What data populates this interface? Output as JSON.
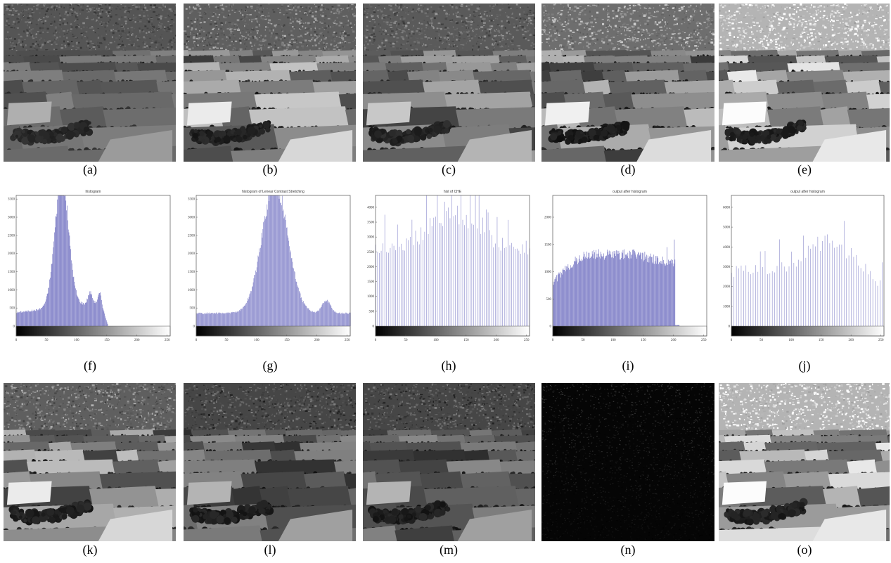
{
  "figure": {
    "top_row": [
      {
        "caption": "(a)",
        "tone": "original"
      },
      {
        "caption": "(b)",
        "tone": "stretched"
      },
      {
        "caption": "(c)",
        "tone": "clahe"
      },
      {
        "caption": "(d)",
        "tone": "equalized"
      },
      {
        "caption": "(e)",
        "tone": "bright"
      }
    ],
    "hist_row_captions": [
      "(f)",
      "(g)",
      "(h)",
      "(i)",
      "(j)"
    ],
    "bottom_row": [
      {
        "caption": "(k)",
        "tone": "stretched"
      },
      {
        "caption": "(l)",
        "tone": "dark"
      },
      {
        "caption": "(m)",
        "tone": "dark"
      },
      {
        "caption": "(n)",
        "tone": "noise"
      },
      {
        "caption": "(o)",
        "tone": "bright"
      }
    ]
  },
  "chart_data": [
    {
      "type": "bar",
      "title": "histogram",
      "ylim": [
        0,
        3600
      ],
      "xlim": [
        0,
        255
      ],
      "yticks": [
        0,
        500,
        1000,
        1500,
        2000,
        2500,
        3000,
        3500
      ],
      "xticks": [
        0,
        50,
        100,
        150,
        200,
        250
      ],
      "bar_color": "#7070c0",
      "profile": "peak",
      "peak_bin": 75
    },
    {
      "type": "bar",
      "title": "histogram of Lenear Contrast Stretching",
      "ylim": [
        0,
        3600
      ],
      "xlim": [
        0,
        255
      ],
      "yticks": [
        0,
        500,
        1000,
        1500,
        2000,
        2500,
        3000,
        3500
      ],
      "xticks": [
        0,
        50,
        100,
        150,
        200,
        250
      ],
      "bar_color": "#8080c8",
      "profile": "wide_peak",
      "peak_bin": 130
    },
    {
      "type": "bar",
      "title": "hist of CHE",
      "ylim": [
        0,
        4400
      ],
      "xlim": [
        0,
        255
      ],
      "yticks": [
        0,
        500,
        1000,
        1500,
        2000,
        2500,
        3000,
        3500,
        4000
      ],
      "xticks": [
        0,
        50,
        100,
        150,
        200,
        250
      ],
      "bar_color": "#9090d0",
      "profile": "spiky",
      "peak_bin": 128
    },
    {
      "type": "bar",
      "title": "output after histogram",
      "ylim": [
        0,
        2400
      ],
      "xlim": [
        0,
        255
      ],
      "yticks": [
        0,
        500,
        1000,
        1500,
        2000
      ],
      "xticks": [
        0,
        50,
        100,
        150,
        200,
        250
      ],
      "bar_color": "#6f6fc0",
      "profile": "plateau",
      "peak_bin": 80
    },
    {
      "type": "bar",
      "title": "output after histogram",
      "ylim": [
        0,
        6600
      ],
      "xlim": [
        0,
        255
      ],
      "yticks": [
        0,
        1000,
        2000,
        3000,
        4000,
        5000,
        6000
      ],
      "xticks": [
        0,
        50,
        100,
        150,
        200,
        250
      ],
      "bar_color": "#9494d0",
      "profile": "sparse",
      "peak_bin": 160
    }
  ]
}
